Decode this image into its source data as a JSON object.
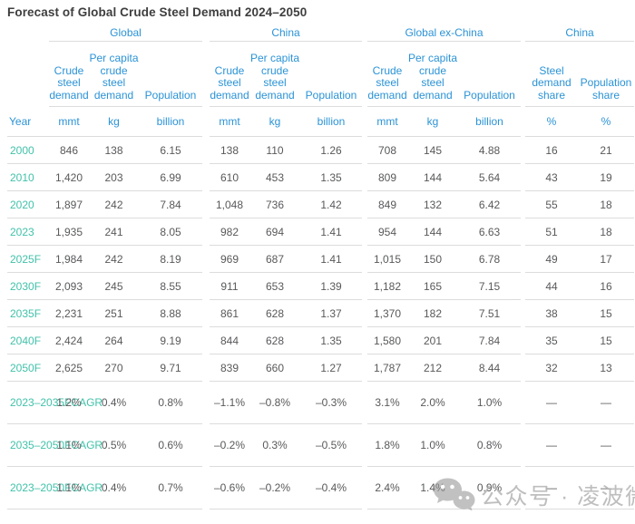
{
  "title": "Forecast of Global Crude Steel Demand 2024–2050",
  "colors": {
    "header_blue": "#2b93d6",
    "year_teal": "#41c2aa",
    "value_gray": "#58595b",
    "title_gray": "#3e3e3e",
    "border_gray": "#dcdcdc",
    "watermark_gray": "#b3b3b3"
  },
  "chart_data": {
    "type": "table",
    "title": "Forecast of Global Crude Steel Demand 2024–2050",
    "row_header": "Year",
    "column_groups": [
      {
        "label": "Global",
        "columns": [
          "Crude steel demand",
          "Per capita crude steel demand",
          "Population"
        ],
        "units": [
          "mmt",
          "kg",
          "billion"
        ]
      },
      {
        "label": "China",
        "columns": [
          "Crude steel demand",
          "Per capita crude steel demand",
          "Population"
        ],
        "units": [
          "mmt",
          "kg",
          "billion"
        ]
      },
      {
        "label": "Global ex-China",
        "columns": [
          "Crude steel demand",
          "Per capita crude steel demand",
          "Population"
        ],
        "units": [
          "mmt",
          "kg",
          "billion"
        ]
      },
      {
        "label": "China",
        "columns": [
          "Steel demand share",
          "Population share"
        ],
        "units": [
          "%",
          "%"
        ]
      }
    ],
    "rows": [
      {
        "label": "2000",
        "cells": [
          "846",
          "138",
          "6.15",
          "138",
          "110",
          "1.26",
          "708",
          "145",
          "4.88",
          "16",
          "21"
        ]
      },
      {
        "label": "2010",
        "cells": [
          "1,420",
          "203",
          "6.99",
          "610",
          "453",
          "1.35",
          "809",
          "144",
          "5.64",
          "43",
          "19"
        ]
      },
      {
        "label": "2020",
        "cells": [
          "1,897",
          "242",
          "7.84",
          "1,048",
          "736",
          "1.42",
          "849",
          "132",
          "6.42",
          "55",
          "18"
        ]
      },
      {
        "label": "2023",
        "cells": [
          "1,935",
          "241",
          "8.05",
          "982",
          "694",
          "1.41",
          "954",
          "144",
          "6.63",
          "51",
          "18"
        ]
      },
      {
        "label": "2025F",
        "cells": [
          "1,984",
          "242",
          "8.19",
          "969",
          "687",
          "1.41",
          "1,015",
          "150",
          "6.78",
          "49",
          "17"
        ]
      },
      {
        "label": "2030F",
        "cells": [
          "2,093",
          "245",
          "8.55",
          "911",
          "653",
          "1.39",
          "1,182",
          "165",
          "7.15",
          "44",
          "16"
        ]
      },
      {
        "label": "2035F",
        "cells": [
          "2,231",
          "251",
          "8.88",
          "861",
          "628",
          "1.37",
          "1,370",
          "182",
          "7.51",
          "38",
          "15"
        ]
      },
      {
        "label": "2040F",
        "cells": [
          "2,424",
          "264",
          "9.19",
          "844",
          "628",
          "1.35",
          "1,580",
          "201",
          "7.84",
          "35",
          "15"
        ]
      },
      {
        "label": "2050F",
        "cells": [
          "2,625",
          "270",
          "9.71",
          "839",
          "660",
          "1.27",
          "1,787",
          "212",
          "8.44",
          "32",
          "13"
        ]
      },
      {
        "label": "2023–2035F CAGR",
        "label_lines": [
          "2023–",
          "2035F",
          "CAGR"
        ],
        "cells": [
          "1.2%",
          "0.4%",
          "0.8%",
          "–1.1%",
          "–0.8%",
          "–0.3%",
          "3.1%",
          "2.0%",
          "1.0%",
          "—",
          "—"
        ]
      },
      {
        "label": "2035–2050F CAGR",
        "label_lines": [
          "2035–",
          "2050F",
          "CAGR"
        ],
        "cells": [
          "1.1%",
          "0.5%",
          "0.6%",
          "–0.2%",
          "0.3%",
          "–0.5%",
          "1.8%",
          "1.0%",
          "0.8%",
          "—",
          "—"
        ]
      },
      {
        "label": "2023–2050F CAGR",
        "label_lines": [
          "2023–",
          "2050F",
          "CAGR"
        ],
        "cells": [
          "1.1%",
          "0.4%",
          "0.7%",
          "–0.6%",
          "–0.2%",
          "–0.4%",
          "2.4%",
          "1.4%",
          "0.9%",
          "—",
          "—"
        ]
      }
    ]
  },
  "watermark": {
    "icon": "wechat-icon",
    "text": "公众号 · 凌波微观"
  }
}
